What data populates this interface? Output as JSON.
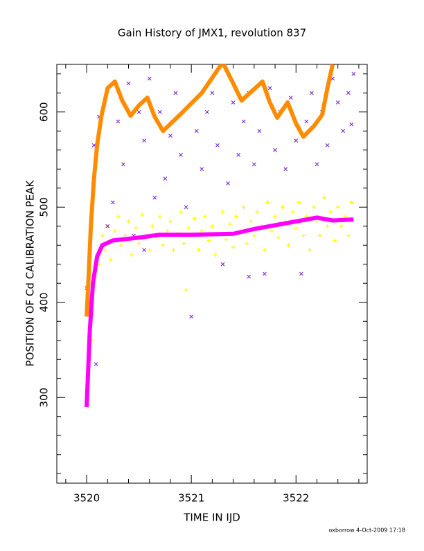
{
  "chart_data": {
    "type": "scatter",
    "title": "Gain History of JMX1, revolution 837",
    "x_label": "TIME IN IJD",
    "y_label": "POSITION OF Cd CALIBRATION PEAK",
    "footer": "oxborrow  4-Oct-2009 17:18",
    "xlim": [
      3519.715,
      3522.68
    ],
    "ylim": [
      210,
      650
    ],
    "xticks": [
      3520,
      3521,
      3522
    ],
    "yticks": [
      300,
      400,
      500,
      600
    ],
    "x_minor_ticks": [
      3519.8,
      3520.2,
      3520.4,
      3520.6,
      3520.8,
      3521.2,
      3521.4,
      3521.6,
      3521.8,
      3522.2,
      3522.4,
      3522.6
    ],
    "y_minor_ticks": [
      220,
      240,
      260,
      280,
      320,
      340,
      360,
      380,
      420,
      440,
      460,
      480,
      520,
      540,
      560,
      580,
      620,
      640
    ],
    "series": [
      {
        "color": "#ffff00",
        "marker": "plus",
        "style": "points",
        "x": [
          3520.05,
          3520.07,
          3520.1,
          3520.12,
          3520.15,
          3520.18,
          3520.2,
          3520.23,
          3520.27,
          3520.3,
          3520.33,
          3520.37,
          3520.4,
          3520.43,
          3520.47,
          3520.5,
          3520.53,
          3520.57,
          3520.6,
          3520.63,
          3520.67,
          3520.7,
          3520.73,
          3520.77,
          3520.8,
          3520.83,
          3520.87,
          3520.9,
          3520.93,
          3520.95,
          3520.97,
          3521.0,
          3521.03,
          3521.07,
          3521.1,
          3521.13,
          3521.17,
          3521.2,
          3521.23,
          3521.27,
          3521.3,
          3521.33,
          3521.37,
          3521.4,
          3521.43,
          3521.47,
          3521.5,
          3521.53,
          3521.57,
          3521.6,
          3521.63,
          3521.67,
          3521.7,
          3521.73,
          3521.77,
          3521.8,
          3521.83,
          3521.87,
          3521.9,
          3521.93,
          3521.97,
          3522.0,
          3522.03,
          3522.07,
          3522.1,
          3522.13,
          3522.17,
          3522.2,
          3522.23,
          3522.27,
          3522.3,
          3522.33,
          3522.37,
          3522.4,
          3522.43,
          3522.47,
          3522.5,
          3522.53
        ],
        "values": [
          360,
          420,
          450,
          440,
          470,
          455,
          480,
          445,
          475,
          490,
          460,
          470,
          485,
          450,
          478,
          462,
          492,
          470,
          455,
          480,
          468,
          490,
          460,
          475,
          485,
          455,
          472,
          495,
          462,
          413,
          478,
          470,
          488,
          455,
          475,
          490,
          465,
          480,
          450,
          472,
          495,
          466,
          482,
          458,
          490,
          475,
          500,
          462,
          485,
          470,
          495,
          480,
          455,
          505,
          475,
          490,
          468,
          500,
          485,
          460,
          495,
          478,
          505,
          470,
          490,
          455,
          500,
          485,
          470,
          510,
          480,
          495,
          465,
          500,
          480,
          490,
          470,
          505
        ]
      },
      {
        "color": "#7b2fd6",
        "marker": "cross",
        "style": "points",
        "x": [
          3520.0,
          3520.02,
          3520.05,
          3520.07,
          3520.09,
          3520.12,
          3520.15,
          3520.2,
          3520.25,
          3520.3,
          3520.35,
          3520.4,
          3520.45,
          3520.5,
          3520.55,
          3520.55,
          3520.6,
          3520.65,
          3520.7,
          3520.75,
          3520.8,
          3520.85,
          3520.9,
          3520.95,
          3521.0,
          3521.05,
          3521.1,
          3521.15,
          3521.2,
          3521.25,
          3521.3,
          3521.35,
          3521.4,
          3521.45,
          3521.5,
          3521.55,
          3521.55,
          3521.6,
          3521.65,
          3521.7,
          3521.75,
          3521.8,
          3521.85,
          3521.9,
          3521.95,
          3522.0,
          3522.05,
          3522.1,
          3522.15,
          3522.2,
          3522.25,
          3522.3,
          3522.35,
          3522.4,
          3522.45,
          3522.5,
          3522.53,
          3522.55
        ],
        "values": [
          415,
          400,
          500,
          565,
          335,
          595,
          460,
          480,
          505,
          590,
          545,
          630,
          470,
          600,
          570,
          455,
          635,
          510,
          600,
          530,
          575,
          620,
          555,
          500,
          385,
          580,
          540,
          600,
          620,
          565,
          440,
          525,
          610,
          555,
          590,
          620,
          427,
          545,
          580,
          430,
          625,
          560,
          600,
          540,
          615,
          570,
          430,
          590,
          620,
          545,
          600,
          565,
          635,
          610,
          580,
          620,
          587,
          640
        ]
      },
      {
        "color": "#ff8c00",
        "marker": "plus",
        "style": "line",
        "x": [
          3520.0,
          3520.02,
          3520.04,
          3520.07,
          3520.1,
          3520.14,
          3520.2,
          3520.27,
          3520.34,
          3520.42,
          3520.5,
          3520.58,
          3520.65,
          3520.73,
          3520.9,
          3521.1,
          3521.3,
          3521.4,
          3521.48,
          3521.58,
          3521.68,
          3521.75,
          3521.82,
          3521.92,
          3522.0,
          3522.07,
          3522.17,
          3522.25,
          3522.3,
          3522.35
        ],
        "values": [
          385,
          430,
          480,
          530,
          565,
          595,
          625,
          632,
          612,
          596,
          607,
          615,
          595,
          580,
          598,
          620,
          652,
          630,
          612,
          622,
          632,
          610,
          594,
          610,
          588,
          574,
          585,
          597,
          625,
          650
        ]
      },
      {
        "color": "#ff00ff",
        "marker": "plus",
        "style": "line",
        "x": [
          3520.0,
          3520.03,
          3520.06,
          3520.1,
          3520.15,
          3520.25,
          3520.5,
          3520.7,
          3521.0,
          3521.4,
          3521.6,
          3521.8,
          3522.0,
          3522.2,
          3522.35,
          3522.55
        ],
        "values": [
          290,
          370,
          420,
          448,
          460,
          465,
          468,
          471,
          471,
          472,
          477,
          481,
          485,
          489,
          486,
          487
        ]
      }
    ]
  }
}
